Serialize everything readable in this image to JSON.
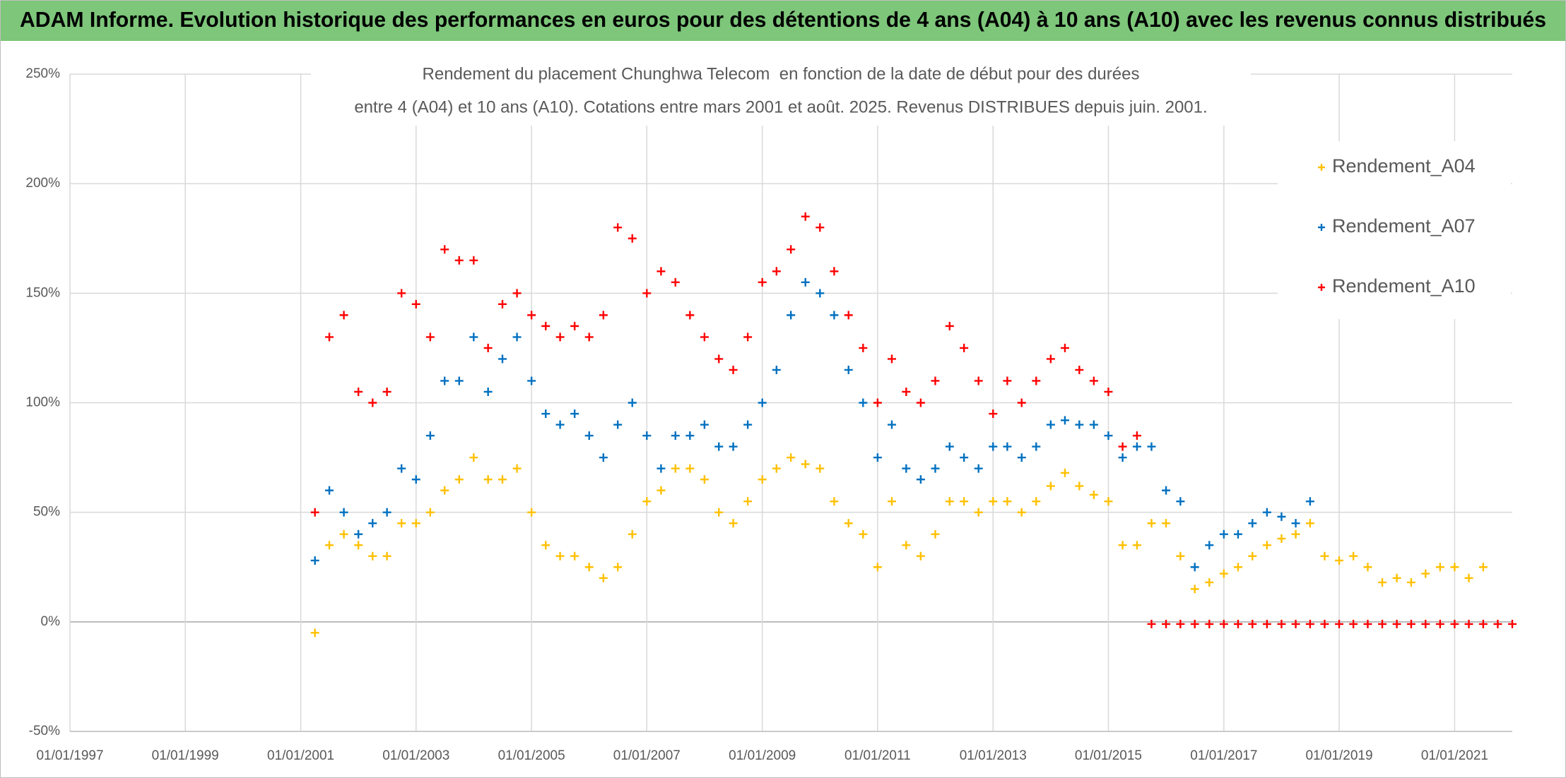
{
  "chart_data": {
    "type": "scatter",
    "title": "ADAM Informe. Evolution historique des performances en euros pour des détentions de 4 ans (A04) à 10 ans (A10) avec les revenus connus distribués",
    "subtitle": [
      "Rendement du placement Chunghwa Telecom  en fonction de la date de début pour des durées",
      "entre 4 (A04) et 10 ans (A10). Cotations entre mars 2001 et août. 2025. Revenus DISTRIBUES depuis juin. 2001."
    ],
    "x": [
      "01/04/2001",
      "01/07/2001",
      "01/10/2001",
      "01/01/2002",
      "01/04/2002",
      "01/07/2002",
      "01/10/2002",
      "01/01/2003",
      "01/04/2003",
      "01/07/2003",
      "01/10/2003",
      "01/01/2004",
      "01/04/2004",
      "01/07/2004",
      "01/10/2004",
      "01/01/2005",
      "01/04/2005",
      "01/07/2005",
      "01/10/2005",
      "01/01/2006",
      "01/04/2006",
      "01/07/2006",
      "01/10/2006",
      "01/01/2007",
      "01/04/2007",
      "01/07/2007",
      "01/10/2007",
      "01/01/2008",
      "01/04/2008",
      "01/07/2008",
      "01/10/2008",
      "01/01/2009",
      "01/04/2009",
      "01/07/2009",
      "01/10/2009",
      "01/01/2010",
      "01/04/2010",
      "01/07/2010",
      "01/10/2010",
      "01/01/2011",
      "01/04/2011",
      "01/07/2011",
      "01/10/2011",
      "01/01/2012",
      "01/04/2012",
      "01/07/2012",
      "01/10/2012",
      "01/01/2013",
      "01/04/2013",
      "01/07/2013",
      "01/10/2013",
      "01/01/2014",
      "01/04/2014",
      "01/07/2014",
      "01/10/2014",
      "01/01/2015",
      "01/04/2015",
      "01/07/2015",
      "01/10/2015",
      "01/01/2016",
      "01/04/2016",
      "01/07/2016",
      "01/10/2016",
      "01/01/2017",
      "01/04/2017",
      "01/07/2017",
      "01/10/2017",
      "01/01/2018",
      "01/04/2018",
      "01/07/2018",
      "01/10/2018",
      "01/01/2019",
      "01/04/2019",
      "01/07/2019",
      "01/10/2019",
      "01/01/2020",
      "01/04/2020",
      "01/07/2020",
      "01/10/2020",
      "01/01/2021",
      "01/04/2021",
      "01/07/2021",
      "01/10/2021",
      "01/01/2022"
    ],
    "series": [
      {
        "name": "Rendement_A04",
        "color": "#ffc000",
        "values": [
          -5,
          35,
          40,
          35,
          30,
          30,
          45,
          45,
          50,
          60,
          65,
          75,
          65,
          65,
          70,
          50,
          35,
          30,
          30,
          25,
          20,
          25,
          40,
          55,
          60,
          70,
          70,
          65,
          50,
          45,
          55,
          65,
          70,
          75,
          72,
          70,
          55,
          45,
          40,
          25,
          55,
          35,
          30,
          40,
          55,
          55,
          50,
          55,
          55,
          50,
          55,
          62,
          68,
          62,
          58,
          55,
          35,
          35,
          45,
          45,
          30,
          15,
          18,
          22,
          25,
          30,
          35,
          38,
          40,
          45,
          30,
          28,
          30,
          25,
          18,
          20,
          18,
          22,
          25,
          25,
          20,
          25,
          null,
          null
        ]
      },
      {
        "name": "Rendement_A07",
        "color": "#0070c0",
        "values": [
          28,
          60,
          50,
          40,
          45,
          50,
          70,
          65,
          85,
          110,
          110,
          130,
          105,
          120,
          130,
          110,
          95,
          90,
          95,
          85,
          75,
          90,
          100,
          85,
          70,
          85,
          85,
          90,
          80,
          80,
          90,
          100,
          115,
          140,
          155,
          150,
          140,
          115,
          100,
          75,
          90,
          70,
          65,
          70,
          80,
          75,
          70,
          80,
          80,
          75,
          80,
          90,
          92,
          90,
          90,
          85,
          75,
          80,
          80,
          60,
          55,
          25,
          35,
          40,
          40,
          45,
          50,
          48,
          45,
          55,
          null,
          null,
          null,
          null,
          null,
          null,
          null,
          null,
          null,
          null,
          null,
          null,
          null,
          null
        ]
      },
      {
        "name": "Rendement_A10",
        "color": "#ff0000",
        "values": [
          50,
          130,
          140,
          105,
          100,
          105,
          150,
          145,
          130,
          170,
          165,
          165,
          125,
          145,
          150,
          140,
          135,
          130,
          135,
          130,
          140,
          180,
          175,
          150,
          160,
          155,
          140,
          130,
          120,
          115,
          130,
          155,
          160,
          170,
          185,
          180,
          160,
          140,
          125,
          100,
          120,
          105,
          100,
          110,
          135,
          125,
          110,
          95,
          110,
          100,
          110,
          120,
          125,
          115,
          110,
          105,
          80,
          85,
          -1,
          -1,
          -1,
          -1,
          -1,
          -1,
          -1,
          -1,
          -1,
          -1,
          -1,
          -1,
          -1,
          -1,
          -1,
          -1,
          -1,
          -1,
          -1,
          -1,
          -1,
          -1,
          -1,
          -1,
          -1,
          -1
        ]
      }
    ],
    "xlim": [
      "01/01/1997",
      "01/01/2022"
    ],
    "xticks": [
      "01/01/1997",
      "01/01/1999",
      "01/01/2001",
      "01/01/2003",
      "01/01/2005",
      "01/01/2007",
      "01/01/2009",
      "01/01/2011",
      "01/01/2013",
      "01/01/2015",
      "01/01/2017",
      "01/01/2019",
      "01/01/2021"
    ],
    "ylim": [
      -50,
      250
    ],
    "yticks": [
      {
        "value": -50,
        "label": "-50%"
      },
      {
        "value": 0,
        "label": "0%"
      },
      {
        "value": 50,
        "label": "50%"
      },
      {
        "value": 100,
        "label": "100%"
      },
      {
        "value": 150,
        "label": "150%"
      },
      {
        "value": 200,
        "label": "200%"
      },
      {
        "value": 250,
        "label": "250%"
      }
    ],
    "grid": true,
    "legend": "right"
  }
}
